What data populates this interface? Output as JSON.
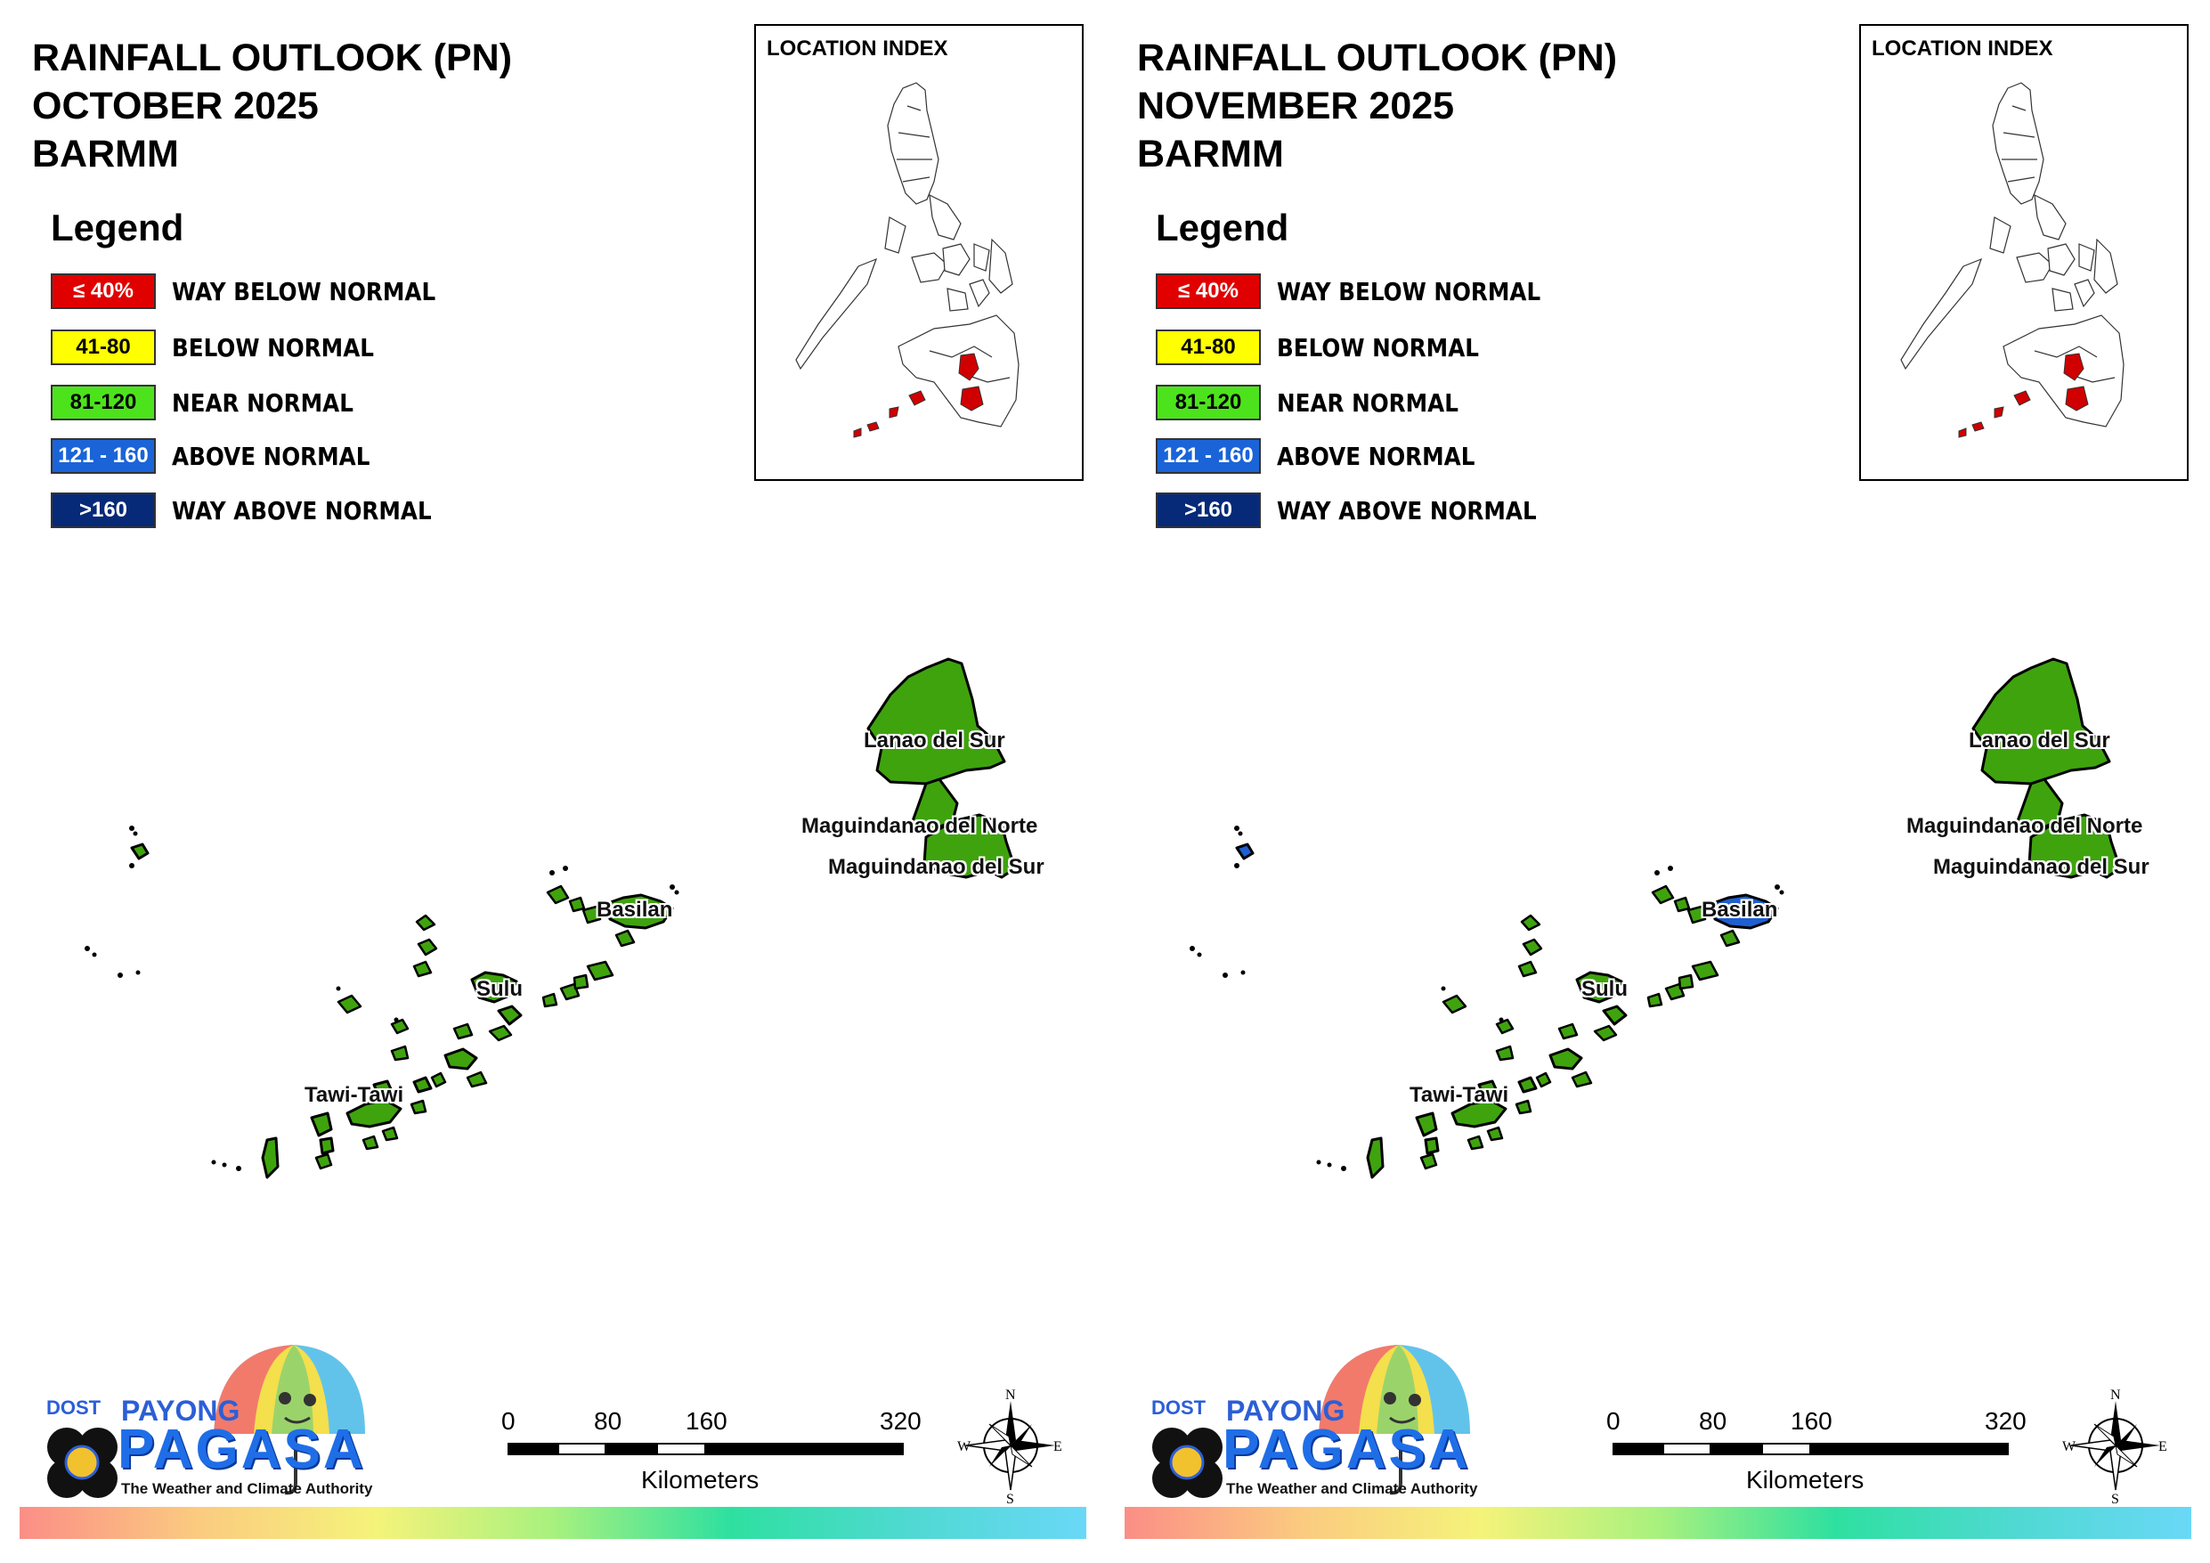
{
  "panels": [
    {
      "title_line1": "RAINFALL OUTLOOK (PN)",
      "title_line2": "OCTOBER 2025",
      "title_line3": "BARMM",
      "region_colors": {
        "lanao_del_sur": "#3fa30e",
        "maguindanao_del_norte": "#3fa30e",
        "maguindanao_del_sur": "#3fa30e",
        "basilan": "#3fa30e",
        "sulu": "#3fa30e",
        "tawi_tawi": "#3fa30e",
        "cagayan_de_tawi_tawi": "#3fa30e"
      }
    },
    {
      "title_line1": "RAINFALL OUTLOOK (PN)",
      "title_line2": "NOVEMBER 2025",
      "title_line3": "BARMM",
      "region_colors": {
        "lanao_del_sur": "#3fa30e",
        "maguindanao_del_norte": "#3fa30e",
        "maguindanao_del_sur": "#3fa30e",
        "basilan": "#1f5fd0",
        "sulu": "#3fa30e",
        "tawi_tawi": "#3fa30e",
        "cagayan_de_tawi_tawi": "#1f5fd0"
      }
    }
  ],
  "legend": {
    "title": "Legend",
    "items": [
      {
        "range": "≤ 40%",
        "label": "WAY BELOW NORMAL",
        "color": "#e00000",
        "text_color": "#ffffff"
      },
      {
        "range": "41-80",
        "label": "BELOW NORMAL",
        "color": "#ffff00",
        "text_color": "#000000"
      },
      {
        "range": "81-120",
        "label": "NEAR NORMAL",
        "color": "#4de31c",
        "text_color": "#000000"
      },
      {
        "range": "121 - 160",
        "label": "ABOVE NORMAL",
        "color": "#1a64d8",
        "text_color": "#ffffff"
      },
      {
        "range": ">160",
        "label": "WAY ABOVE NORMAL",
        "color": "#062a78",
        "text_color": "#ffffff"
      }
    ]
  },
  "inset": {
    "title": "LOCATION INDEX",
    "highlight_color": "#d10000"
  },
  "places": {
    "lanao_del_sur": "Lanao del Sur",
    "maguindanao_del_norte": "Maguindanao del Norte",
    "maguindanao_del_sur": "Maguindanao del Sur",
    "basilan": "Basilan",
    "sulu": "Sulu",
    "tawi_tawi": "Tawi-Tawi"
  },
  "scale_bar": {
    "ticks": [
      "0",
      "80",
      "160",
      "320"
    ],
    "unit": "Kilometers"
  },
  "compass": {
    "n": "N",
    "s": "S",
    "e": "E",
    "w": "W"
  },
  "logo": {
    "dost": "DOST",
    "payong": "PAYONG",
    "pagasa": "PAGASA",
    "tagline": "The Weather and Climate Authority"
  }
}
